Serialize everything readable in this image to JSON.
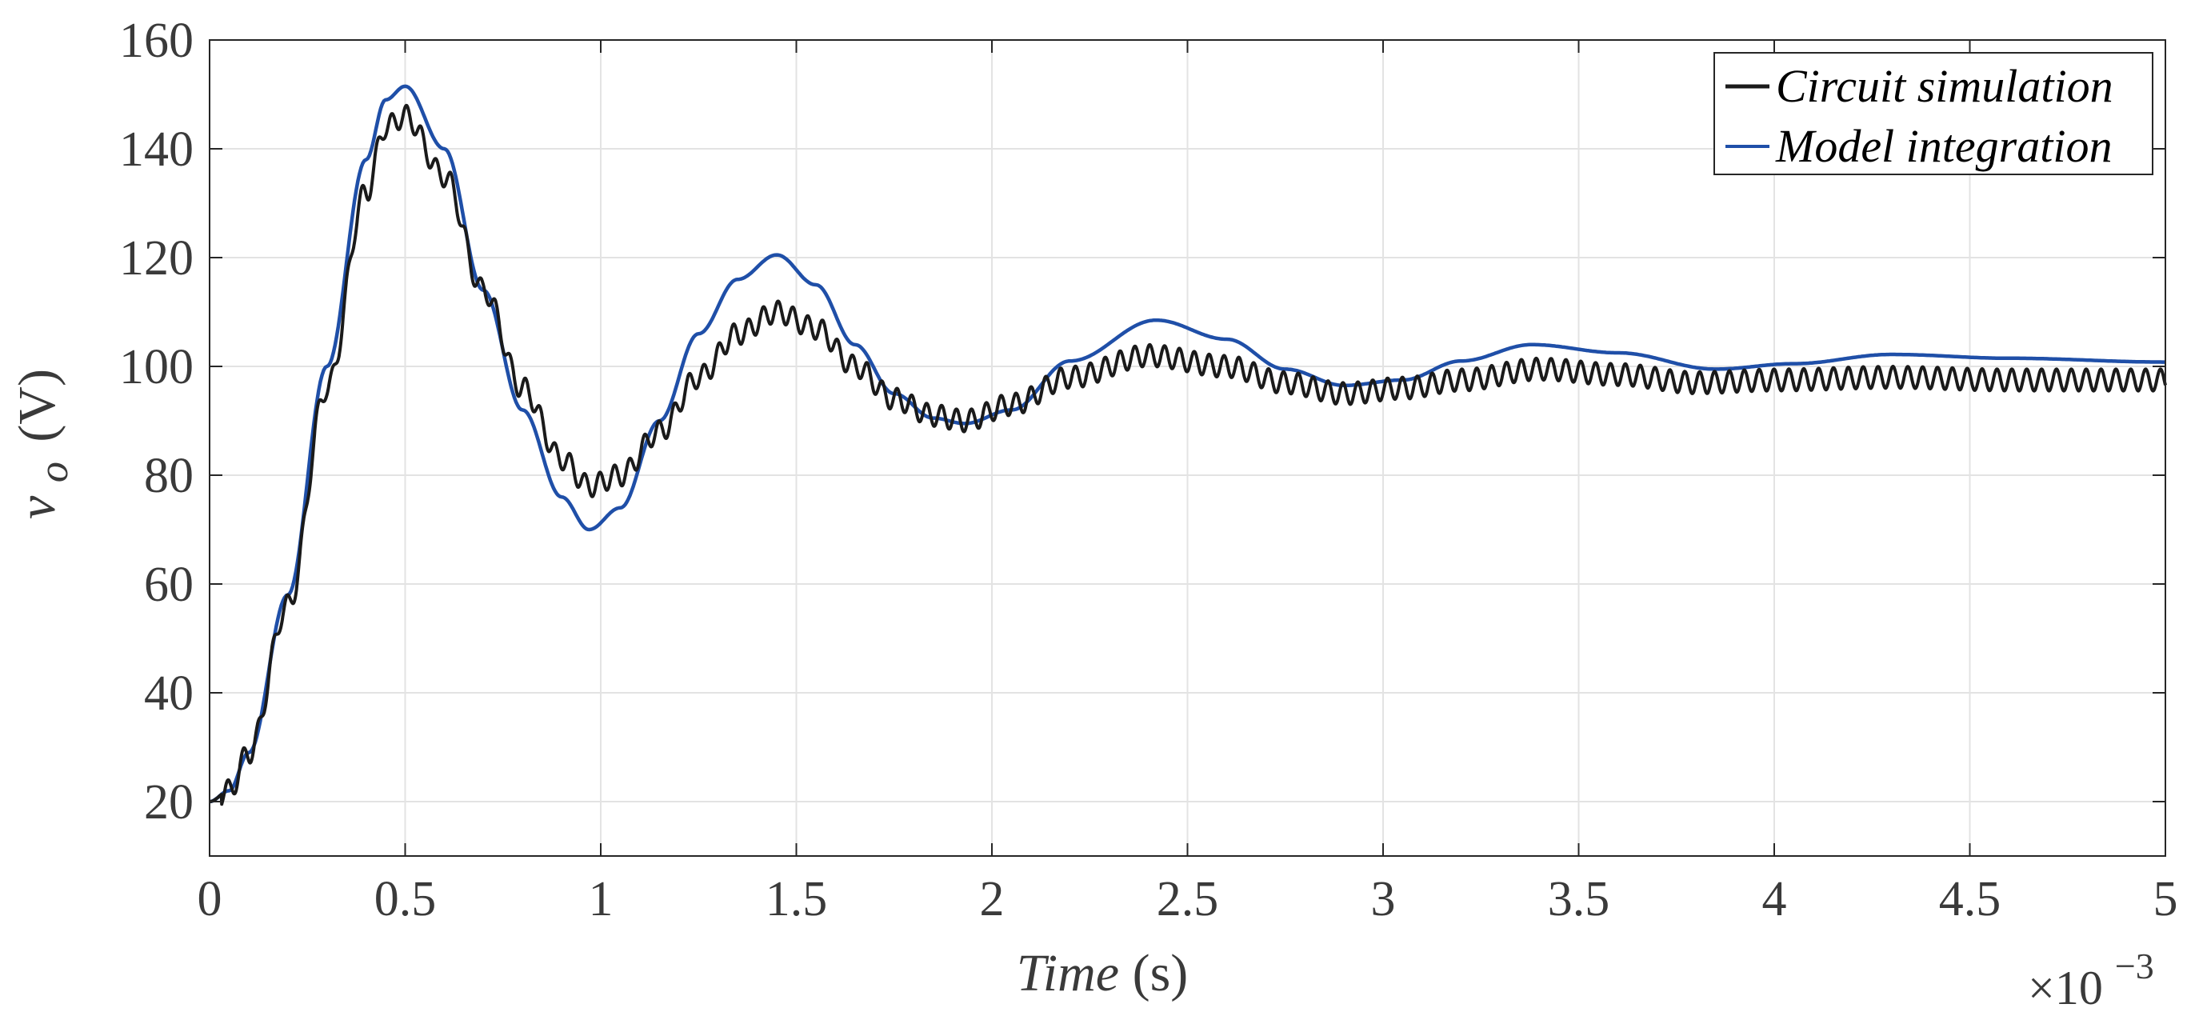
{
  "chart_data": {
    "type": "line",
    "title": "",
    "xlabel_main": "Time",
    "xlabel_unit": "(s)",
    "ylabel_main": "v",
    "ylabel_sub": "o",
    "ylabel_unit": "(V)",
    "x_multiplier_base": "×10",
    "x_multiplier_exp": "−3",
    "xlim": [
      0,
      5
    ],
    "ylim": [
      10,
      160
    ],
    "x_ticks": [
      0,
      0.5,
      1,
      1.5,
      2,
      2.5,
      3,
      3.5,
      4,
      4.5,
      5
    ],
    "x_tick_labels": [
      "0",
      "0.5",
      "1",
      "1.5",
      "2",
      "2.5",
      "3",
      "3.5",
      "4",
      "4.5",
      "5"
    ],
    "y_ticks": [
      20,
      40,
      60,
      80,
      100,
      120,
      140,
      160
    ],
    "y_tick_labels": [
      "20",
      "40",
      "60",
      "80",
      "100",
      "120",
      "140",
      "160"
    ],
    "grid": true,
    "legend_position": "top-right",
    "series": [
      {
        "name": "Circuit simulation",
        "color": "#1a1a1a",
        "x": [
          0,
          0.05,
          0.1,
          0.2,
          0.3,
          0.4,
          0.45,
          0.5,
          0.6,
          0.7,
          0.8,
          0.9,
          0.97,
          1.05,
          1.15,
          1.25,
          1.35,
          1.45,
          1.55,
          1.65,
          1.75,
          1.85,
          1.93,
          2.05,
          2.2,
          2.4,
          2.6,
          2.75,
          2.9,
          3.05,
          3.2,
          3.4,
          3.6,
          3.8,
          4.0,
          4.3,
          4.6,
          5.0
        ],
        "y": [
          20,
          22,
          29,
          56,
          96,
          132,
          144,
          146,
          135,
          114,
          96,
          83,
          78,
          80,
          88,
          98,
          106,
          110,
          107,
          100,
          94,
          91,
          90,
          93,
          98,
          102,
          100,
          97,
          95,
          96,
          97.5,
          99.5,
          98.5,
          97,
          97.5,
          98,
          97.5,
          97.5
        ],
        "ripple_amplitude": 2
      },
      {
        "name": "Model integration",
        "color": "#1f4fa8",
        "x": [
          0,
          0.05,
          0.1,
          0.2,
          0.3,
          0.4,
          0.45,
          0.5,
          0.6,
          0.7,
          0.8,
          0.9,
          0.97,
          1.05,
          1.15,
          1.25,
          1.35,
          1.45,
          1.55,
          1.65,
          1.75,
          1.85,
          1.93,
          2.05,
          2.2,
          2.42,
          2.6,
          2.75,
          2.9,
          3.05,
          3.2,
          3.38,
          3.6,
          3.85,
          4.05,
          4.3,
          4.6,
          5.0
        ],
        "y": [
          20,
          22,
          29,
          58,
          100,
          138,
          149,
          151.5,
          140,
          114,
          92,
          76,
          70,
          74,
          90,
          106,
          116,
          120.5,
          115,
          104,
          95,
          90.5,
          89.5,
          92,
          101,
          108.5,
          105,
          99.5,
          96.5,
          97.5,
          101,
          104,
          102.5,
          99.5,
          100.5,
          102.2,
          101.5,
          100.8
        ]
      }
    ]
  }
}
